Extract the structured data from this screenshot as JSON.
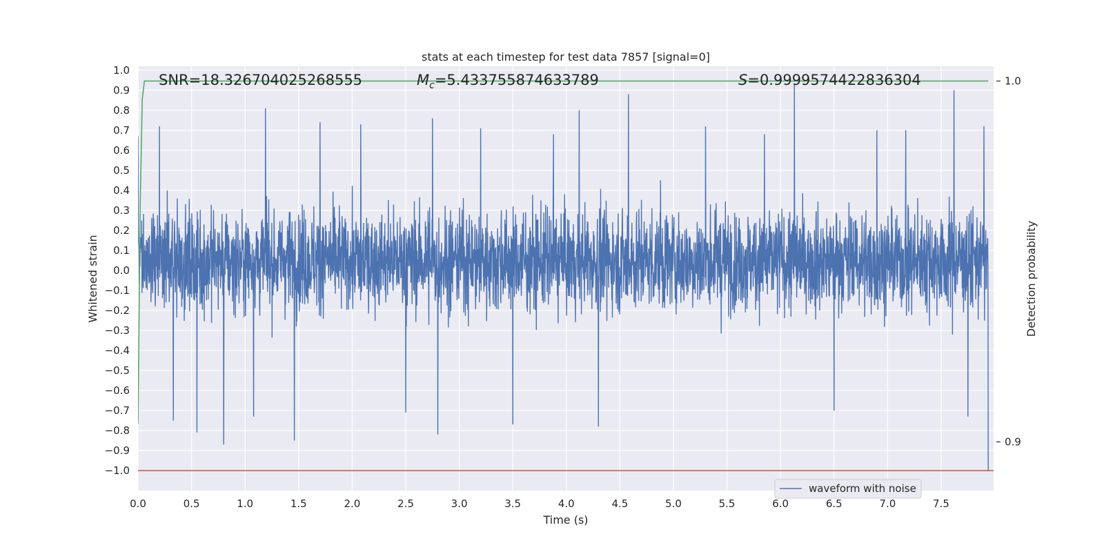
{
  "chart_data": {
    "type": "line",
    "title": "stats at each timestep for test data 7857 [signal=0]",
    "xlabel": "Time (s)",
    "ylabel": "Whitened strain",
    "y2label": "Detection probability",
    "xlim": [
      0.0,
      7.99
    ],
    "ylim": [
      -1.1,
      1.02
    ],
    "y2lim": [
      0.8865,
      1.0041
    ],
    "xticks": [
      "0.0",
      "0.5",
      "1.0",
      "1.5",
      "2.0",
      "2.5",
      "3.0",
      "3.5",
      "4.0",
      "4.5",
      "5.0",
      "5.5",
      "6.0",
      "6.5",
      "7.0",
      "7.5"
    ],
    "yticks": [
      "1.0",
      "0.9",
      "0.8",
      "0.7",
      "0.6",
      "0.5",
      "0.4",
      "0.3",
      "0.2",
      "0.1",
      "0.0",
      "−0.1",
      "−0.2",
      "−0.3",
      "−0.4",
      "−0.5",
      "−0.6",
      "−0.7",
      "−0.8",
      "−0.9",
      "−1.0"
    ],
    "y2ticks": [
      "1.0",
      "0.9"
    ],
    "grid": true,
    "legend": {
      "placement": "bottom-right",
      "entries": [
        "waveform with noise"
      ]
    },
    "annotations": {
      "snr": "SNR=18.326704025268555",
      "mc_symbol": "M",
      "mc_sub": "c",
      "mc_value": "=5.433755874633789",
      "s_symbol": "S",
      "s_value": "=0.9999574422836304"
    },
    "series": [
      {
        "name": "waveform with noise",
        "axis": "left",
        "color": "#4c72b0",
        "x_range": [
          0.0,
          7.94
        ],
        "y_range": [
          -1.0,
          0.93
        ],
        "typical_envelope": [
          -0.45,
          0.55
        ],
        "x": [
          0.0,
          0.2,
          0.33,
          0.55,
          0.8,
          1.08,
          1.19,
          1.46,
          1.7,
          2.08,
          2.5,
          2.75,
          2.8,
          3.2,
          3.5,
          3.88,
          4.12,
          4.3,
          4.58,
          4.88,
          5.3,
          5.85,
          6.13,
          6.5,
          6.9,
          7.17,
          7.62,
          7.75,
          7.9,
          7.94
        ],
        "y": [
          0.67,
          0.72,
          -0.75,
          -0.81,
          -0.87,
          -0.73,
          0.81,
          -0.85,
          0.74,
          0.73,
          -0.71,
          0.76,
          -0.82,
          0.71,
          -0.77,
          0.68,
          0.8,
          -0.78,
          0.88,
          0.45,
          0.72,
          0.68,
          0.93,
          -0.7,
          0.7,
          0.7,
          0.9,
          -0.73,
          0.72,
          -1.0
        ]
      },
      {
        "name": "",
        "axis": "right",
        "color": "#55a868",
        "x": [
          0.0,
          0.02,
          0.04,
          0.06,
          7.94
        ],
        "y": [
          0.905,
          0.965,
          0.995,
          1.0,
          1.0
        ]
      },
      {
        "name": "",
        "axis": "left",
        "color": "#c44e52",
        "x": [
          0.0,
          7.99
        ],
        "y": [
          -1.0,
          -1.0
        ]
      }
    ]
  }
}
